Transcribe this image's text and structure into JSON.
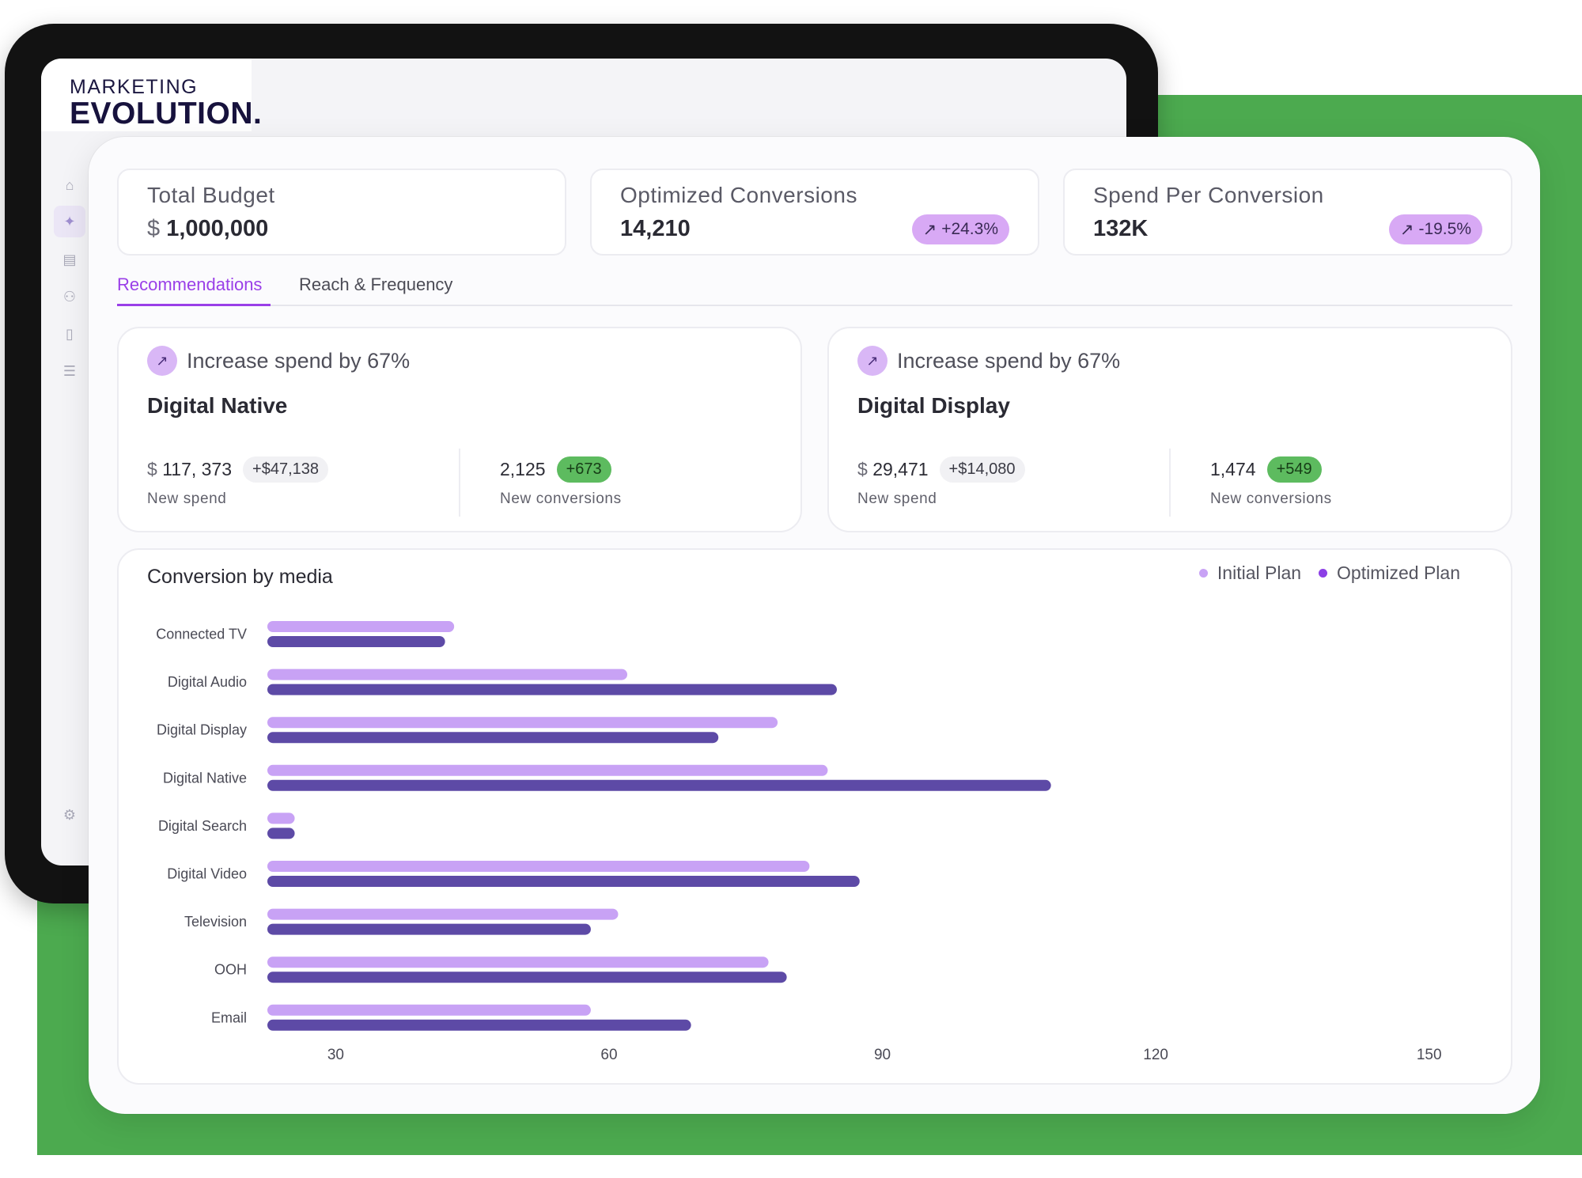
{
  "brand": {
    "line1": "MARKETING",
    "line2": "EVOLUTION",
    "dot": "."
  },
  "sidebar": {
    "items": [
      {
        "icon": "home-icon",
        "glyph": "⌂"
      },
      {
        "icon": "sparkle-icon",
        "glyph": "✦"
      },
      {
        "icon": "chart-icon",
        "glyph": "▤"
      },
      {
        "icon": "users-icon",
        "glyph": "⚇"
      },
      {
        "icon": "document-icon",
        "glyph": "▯"
      },
      {
        "icon": "database-icon",
        "glyph": "☰"
      }
    ],
    "settings_glyph": "⚙"
  },
  "kpis": [
    {
      "title": "Total Budget",
      "currency": "$",
      "value": "1,000,000",
      "change": ""
    },
    {
      "title": "Optimized Conversions",
      "currency": "",
      "value": "14,210",
      "change": "+24.3%"
    },
    {
      "title": "Spend Per Conversion",
      "currency": "",
      "value": "132K",
      "change": "-19.5%"
    }
  ],
  "trend_glyph": "↗",
  "tabs": [
    {
      "label": "Recommendations",
      "active": true
    },
    {
      "label": "Reach & Frequency",
      "active": false
    }
  ],
  "recommendations": [
    {
      "headline": "Increase spend by 67%",
      "channel": "Digital Native",
      "spend_currency": "$",
      "spend": "117, 373",
      "spend_delta": "+$47,138",
      "spend_label": "New spend",
      "conversions": "2,125",
      "conversions_delta": "+673",
      "conversions_label": "New conversions"
    },
    {
      "headline": "Increase spend by 67%",
      "channel": "Digital Display",
      "spend_currency": "$",
      "spend": "29,471",
      "spend_delta": "+$14,080",
      "spend_label": "New spend",
      "conversions": "1,474",
      "conversions_delta": "+549",
      "conversions_label": "New conversions"
    }
  ],
  "colors": {
    "initial": "#c8a2f5",
    "optimized": "#5d4aa6",
    "legend_optimized": "#8c3fe6",
    "accent": "#9a3fe8",
    "green": "#4caa4f"
  },
  "chart_data": {
    "type": "bar",
    "orientation": "horizontal",
    "title": "Conversion by media",
    "categories": [
      "Connected TV",
      "Digital Audio",
      "Digital Display",
      "Digital Native",
      "Digital Search",
      "Digital Video",
      "Television",
      "OOH",
      "Email"
    ],
    "series": [
      {
        "name": "Initial Plan",
        "values": [
          43,
          62,
          78.5,
          84,
          25.5,
          82,
          61,
          77.5,
          58
        ]
      },
      {
        "name": "Optimized Plan",
        "values": [
          42,
          85,
          72,
          108.5,
          25.5,
          87.5,
          58,
          79.5,
          69
        ]
      }
    ],
    "xticks": [
      30,
      60,
      90,
      120,
      150
    ],
    "xlim": [
      22.5,
      151.5
    ],
    "legend": "top-right",
    "grid": false
  }
}
